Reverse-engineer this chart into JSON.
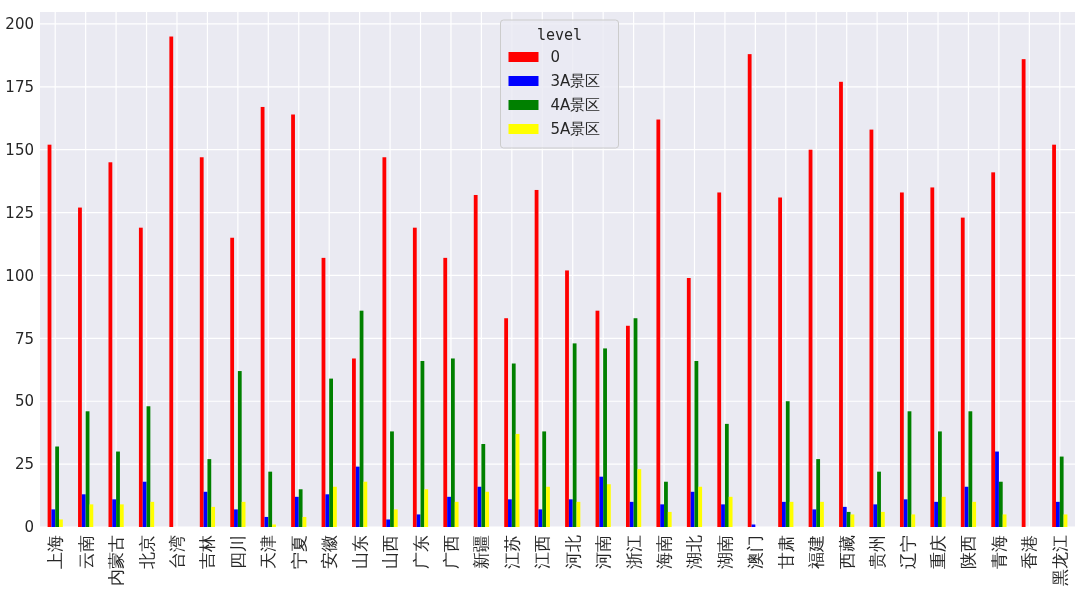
{
  "chart_data": {
    "type": "bar",
    "categories": [
      "上海",
      "云南",
      "内蒙古",
      "北京",
      "台湾",
      "吉林",
      "四川",
      "天津",
      "宁夏",
      "安徽",
      "山东",
      "山西",
      "广东",
      "广西",
      "新疆",
      "江苏",
      "江西",
      "河北",
      "河南",
      "浙江",
      "海南",
      "湖北",
      "湖南",
      "澳门",
      "甘肃",
      "福建",
      "西藏",
      "贵州",
      "辽宁",
      "重庆",
      "陕西",
      "青海",
      "香港",
      "黑龙江"
    ],
    "series": [
      {
        "name": "0",
        "color": "#ff0000",
        "values": [
          152,
          127,
          145,
          119,
          195,
          147,
          115,
          167,
          164,
          107,
          67,
          147,
          119,
          107,
          132,
          83,
          134,
          102,
          86,
          80,
          162,
          99,
          133,
          188,
          131,
          150,
          177,
          158,
          133,
          135,
          123,
          141,
          186,
          152
        ]
      },
      {
        "name": "3A景区",
        "color": "#0000ff",
        "values": [
          7,
          13,
          11,
          18,
          0,
          14,
          7,
          4,
          12,
          13,
          24,
          3,
          5,
          12,
          16,
          11,
          7,
          11,
          20,
          10,
          9,
          14,
          9,
          1,
          10,
          7,
          8,
          9,
          11,
          10,
          16,
          30,
          0,
          10
        ]
      },
      {
        "name": "4A景区",
        "color": "#008000",
        "values": [
          32,
          46,
          30,
          48,
          0,
          27,
          62,
          22,
          15,
          59,
          86,
          38,
          66,
          67,
          33,
          65,
          38,
          73,
          71,
          83,
          18,
          66,
          41,
          0,
          50,
          27,
          6,
          22,
          46,
          38,
          46,
          18,
          0,
          28
        ]
      },
      {
        "name": "5A景区",
        "color": "#ffff00",
        "values": [
          3,
          9,
          9,
          10,
          0,
          8,
          10,
          1,
          4,
          16,
          18,
          7,
          15,
          10,
          14,
          37,
          16,
          10,
          17,
          23,
          6,
          16,
          12,
          0,
          10,
          10,
          5,
          6,
          5,
          12,
          10,
          5,
          0,
          5
        ]
      }
    ],
    "legend_title": "level",
    "legend": "top",
    "grid": true,
    "ylim": [
      0,
      204.75
    ],
    "yticks": [
      0,
      25,
      50,
      75,
      100,
      125,
      150,
      175,
      200
    ]
  }
}
